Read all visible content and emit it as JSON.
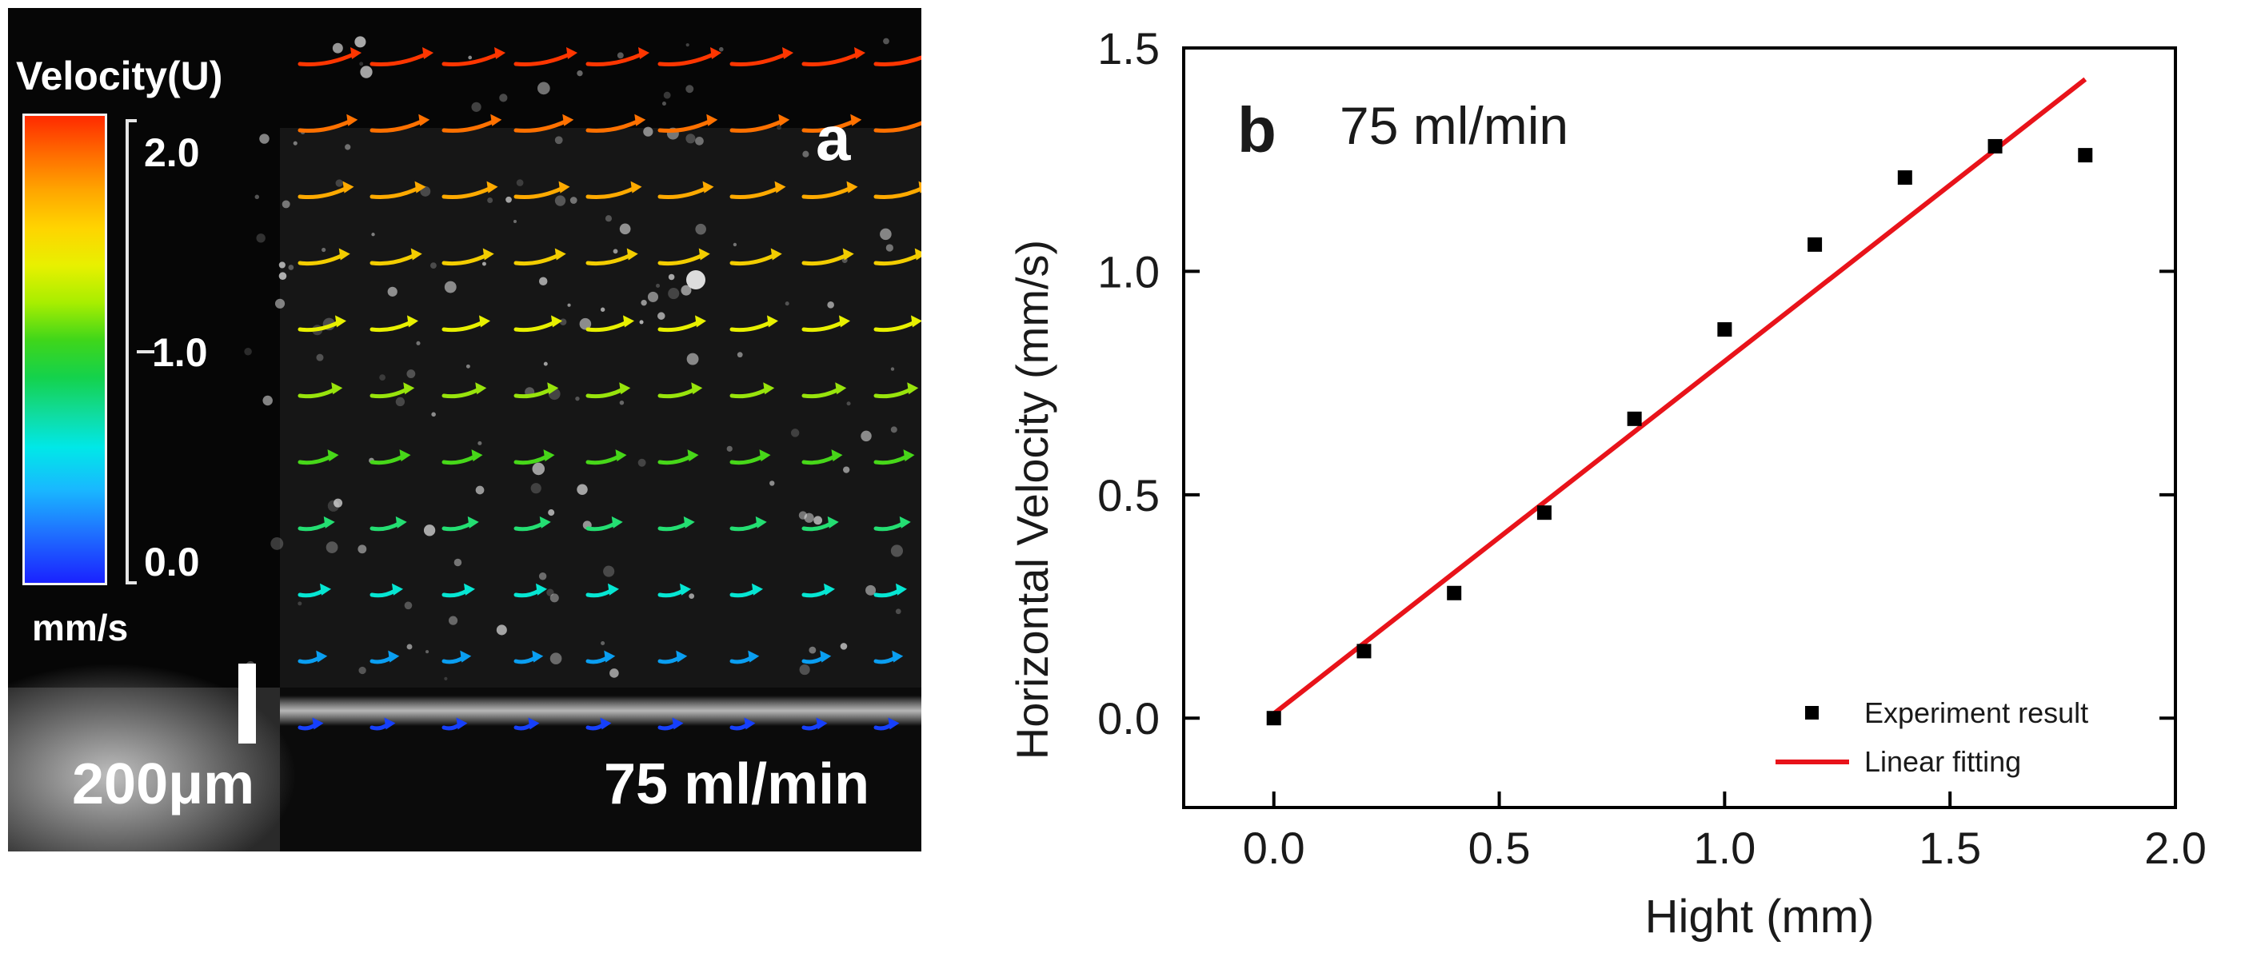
{
  "panel_a": {
    "panel_letter": "a",
    "colorbar_title": "Velocity(U)",
    "colorbar_ticks": [
      "2.0",
      "1.0",
      "0.0"
    ],
    "colorbar_unit": "mm/s",
    "scale_bar_label": "200μm",
    "flow_rate_label": "75 ml/min",
    "colorbar_colors": [
      "#ff2a00",
      "#ffa600",
      "#e8f000",
      "#3fd61a",
      "#00e8e8",
      "#1a22ff"
    ]
  },
  "chart_data": {
    "type": "scatter",
    "panel_letter": "b",
    "annotation": "75 ml/min",
    "xlabel": "Hight (mm)",
    "ylabel": "Horizontal Velocity (mm/s)",
    "xlim": [
      -0.2,
      2.0
    ],
    "ylim": [
      -0.2,
      1.5
    ],
    "xticks": [
      0.0,
      0.5,
      1.0,
      1.5,
      2.0
    ],
    "xtick_labels": [
      "0.0",
      "0.5",
      "1.0",
      "1.5",
      "2.0"
    ],
    "yticks": [
      0.0,
      0.5,
      1.0,
      1.5
    ],
    "ytick_labels": [
      "0.0",
      "0.5",
      "1.0",
      "1.5"
    ],
    "series": [
      {
        "name": "Experiment result",
        "kind": "scatter",
        "color": "#000000",
        "x": [
          0.0,
          0.2,
          0.4,
          0.6,
          0.8,
          1.0,
          1.2,
          1.4,
          1.6,
          1.8
        ],
        "y": [
          0.0,
          0.15,
          0.28,
          0.46,
          0.67,
          0.87,
          1.06,
          1.21,
          1.28,
          1.26
        ]
      },
      {
        "name": "Linear fitting",
        "kind": "line",
        "color": "#e8131a",
        "x": [
          0.0,
          1.8
        ],
        "y": [
          0.01,
          1.43
        ]
      }
    ],
    "legend_position": "bottom-right"
  }
}
